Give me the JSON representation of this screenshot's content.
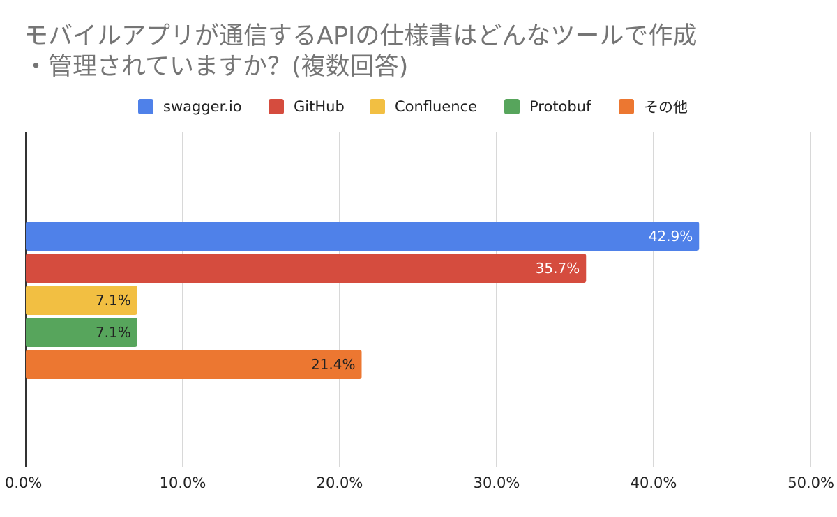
{
  "chart_data": {
    "type": "bar",
    "orientation": "horizontal",
    "title": "モバイルアプリが通信するAPIの仕様書はどんなツールで作成・管理されていますか？(複数回答)",
    "title_lines": [
      "モバイルアプリが通信するAPIの仕様書はどんなツールで作成",
      "・管理されていますか？(複数回答)"
    ],
    "legend_position": "top",
    "grid": true,
    "xlim": [
      0,
      50
    ],
    "x_ticks": [
      0,
      10,
      20,
      30,
      40,
      50
    ],
    "x_tick_labels": [
      "0.0%",
      "10.0%",
      "20.0%",
      "30.0%",
      "40.0%",
      "50.0%"
    ],
    "series": [
      {
        "name": "swagger.io",
        "value": 42.9,
        "label": "42.9%",
        "color": "#4f81e9",
        "label_color": "#ffffff"
      },
      {
        "name": "GitHub",
        "value": 35.7,
        "label": "35.7%",
        "color": "#d54c3e",
        "label_color": "#ffffff"
      },
      {
        "name": "Confluence",
        "value": 7.1,
        "label": "7.1%",
        "color": "#f2bf42",
        "label_color": "#222222"
      },
      {
        "name": "Protobuf",
        "value": 7.1,
        "label": "7.1%",
        "color": "#57a55c",
        "label_color": "#222222"
      },
      {
        "name": "その他",
        "value": 21.4,
        "label": "21.4%",
        "color": "#ec7731",
        "label_color": "#222222"
      }
    ]
  }
}
